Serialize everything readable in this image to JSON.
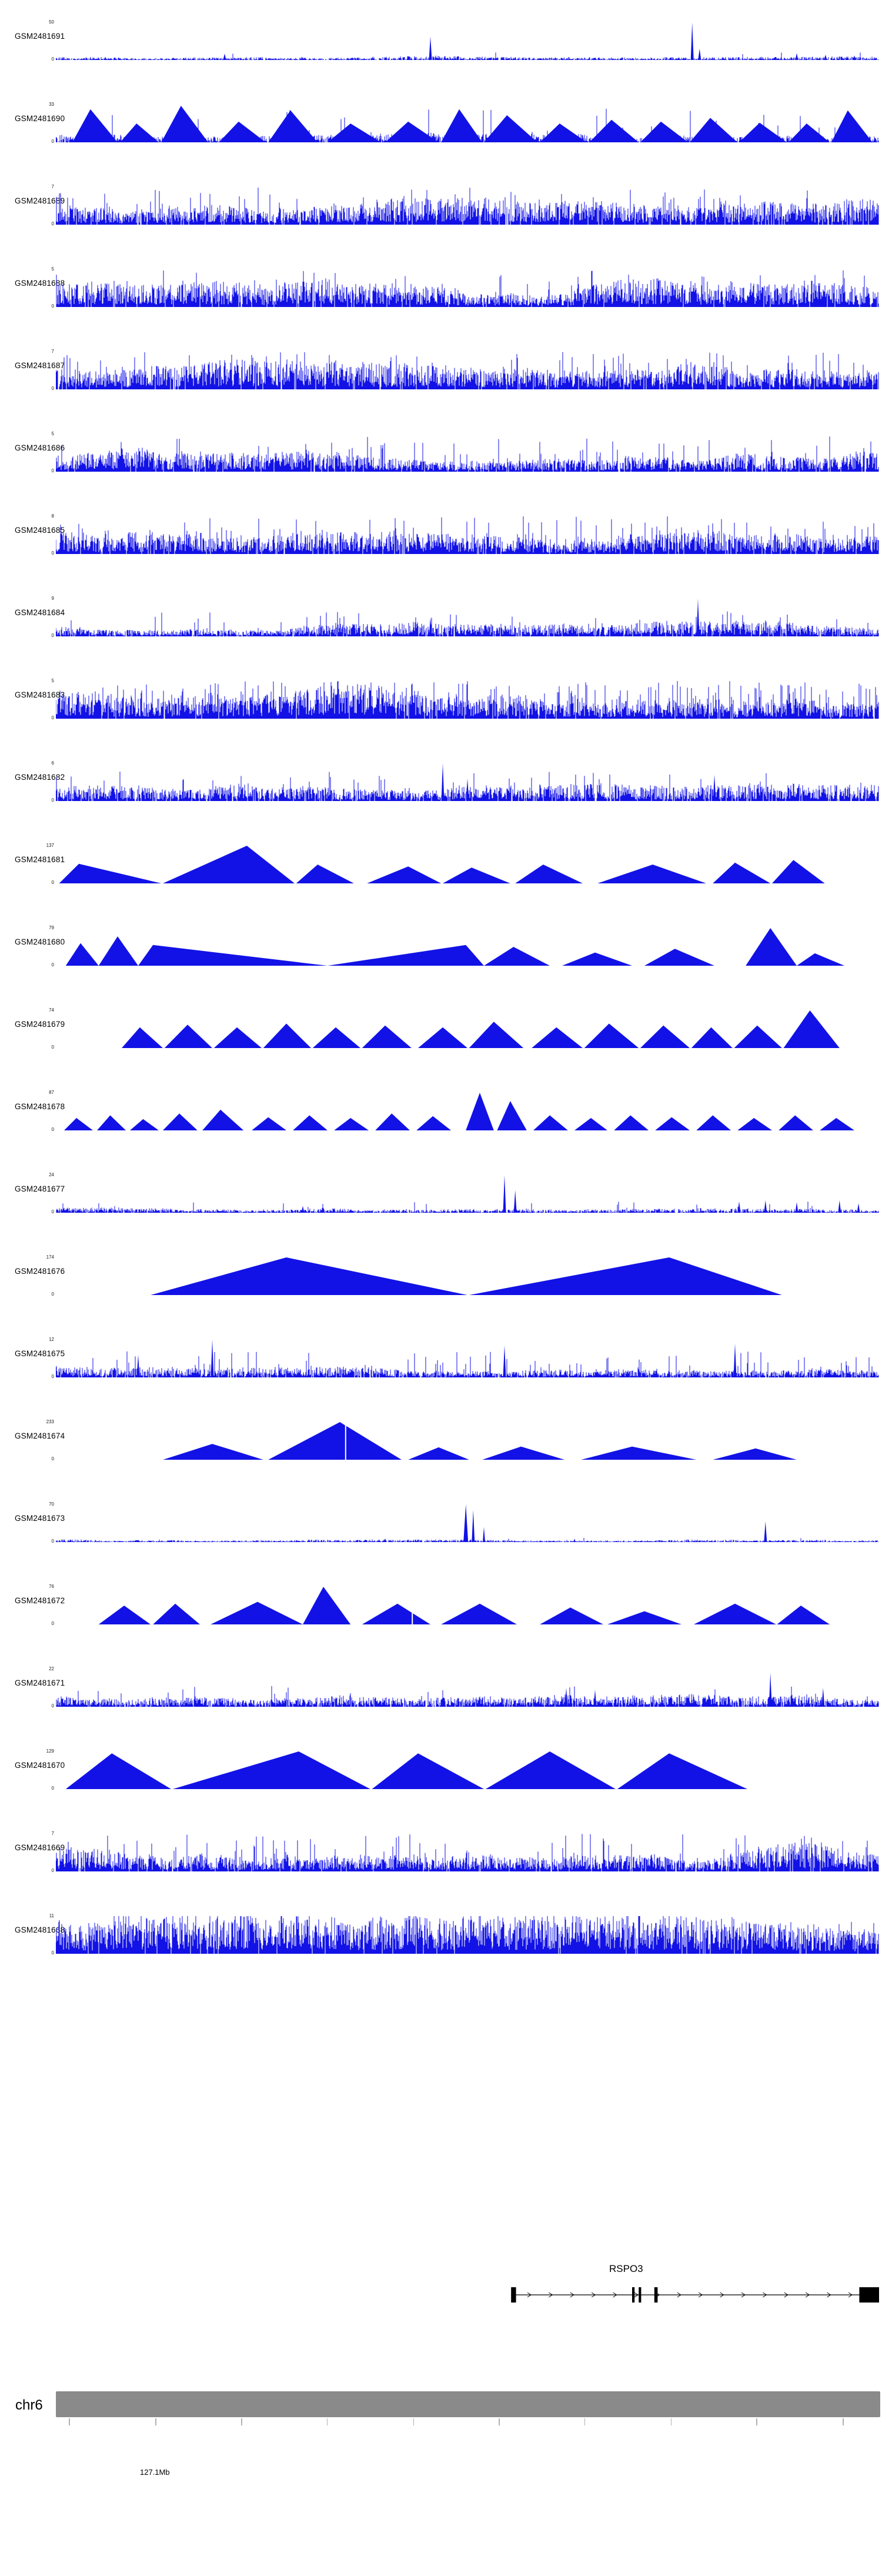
{
  "figure": {
    "background": "#ffffff",
    "signal_color": "#1212e6",
    "annotation_color": "#000000",
    "chrom_bar_color": "#8a8a8a"
  },
  "chromosome": {
    "name": "chr6",
    "position_label": "127.1Mb",
    "label_tick_index": 1,
    "ticks": [
      0.016,
      0.121,
      0.225,
      0.329,
      0.434,
      0.538,
      0.642,
      0.747,
      0.851,
      0.956
    ]
  },
  "gene": {
    "name": "RSPO3",
    "strand": "+",
    "line_start": 0.553,
    "line_end": 1.0,
    "exons": [
      {
        "x": 0.553,
        "w": 0.006
      },
      {
        "x": 0.7,
        "w": 0.003
      },
      {
        "x": 0.708,
        "w": 0.003
      },
      {
        "x": 0.727,
        "w": 0.004
      }
    ],
    "end_box": {
      "x": 0.976,
      "w": 0.024
    },
    "chevron_start": 0.575,
    "chevron_end": 0.968,
    "chevron_step": 0.026
  },
  "chart_data": {
    "type": "area",
    "description": "Genome browser coverage tracks, chr6 around 127.1Mb at RSPO3 locus",
    "x_axis": {
      "chromosome": "chr6",
      "visible_position_label": "127.1Mb"
    },
    "tracks": [
      {
        "label": "GSM2481691",
        "ymax": 50,
        "ymin": 0,
        "type": "dense",
        "seed": 101,
        "base": 0.05,
        "density": 0.85,
        "spikeProb": 0.008,
        "spikeMax": 0.2,
        "spikes": [
          [
            0.205,
            0.17
          ],
          [
            0.455,
            0.62
          ],
          [
            0.773,
            1.0
          ],
          [
            0.782,
            0.3
          ],
          [
            0.9,
            0.18
          ],
          [
            0.935,
            0.14
          ],
          [
            0.97,
            0.12
          ]
        ]
      },
      {
        "label": "GSM2481690",
        "ymax": 33,
        "ymin": 0,
        "type": "peaks",
        "seed": 102,
        "noise": {
          "base": 0.1,
          "density": 0.8,
          "spikeProb": 0.05,
          "spikeMax": 0.9
        },
        "triangles": [
          [
            0.02,
            0.042,
            0.075,
            0.88
          ],
          [
            0.078,
            0.098,
            0.125,
            0.5
          ],
          [
            0.128,
            0.152,
            0.185,
            0.97
          ],
          [
            0.198,
            0.222,
            0.255,
            0.55
          ],
          [
            0.258,
            0.285,
            0.318,
            0.85
          ],
          [
            0.33,
            0.358,
            0.395,
            0.5
          ],
          [
            0.4,
            0.428,
            0.465,
            0.55
          ],
          [
            0.468,
            0.49,
            0.518,
            0.88
          ],
          [
            0.52,
            0.548,
            0.585,
            0.72
          ],
          [
            0.588,
            0.612,
            0.645,
            0.5
          ],
          [
            0.648,
            0.675,
            0.708,
            0.6
          ],
          [
            0.71,
            0.735,
            0.768,
            0.55
          ],
          [
            0.77,
            0.795,
            0.828,
            0.65
          ],
          [
            0.83,
            0.855,
            0.888,
            0.52
          ],
          [
            0.89,
            0.912,
            0.94,
            0.5
          ],
          [
            0.942,
            0.962,
            0.992,
            0.85
          ]
        ]
      },
      {
        "label": "GSM2481689",
        "ymax": 7,
        "ymin": 0,
        "type": "dense",
        "seed": 103,
        "base": 0.28,
        "density": 0.95,
        "spikeProb": 0.1,
        "spikeMax": 1.0,
        "spikes": []
      },
      {
        "label": "GSM2481688",
        "ymax": 5,
        "ymin": 0,
        "type": "dense",
        "seed": 104,
        "base": 0.3,
        "density": 0.95,
        "spikeProb": 0.09,
        "spikeMax": 1.0,
        "spikes": []
      },
      {
        "label": "GSM2481687",
        "ymax": 7,
        "ymin": 0,
        "type": "dense",
        "seed": 105,
        "base": 0.3,
        "density": 0.95,
        "spikeProb": 0.12,
        "spikeMax": 1.0,
        "spikes": []
      },
      {
        "label": "GSM2481686",
        "ymax": 5,
        "ymin": 0,
        "type": "dense",
        "seed": 106,
        "base": 0.26,
        "density": 0.95,
        "spikeProb": 0.08,
        "spikeMax": 0.95,
        "spikes": []
      },
      {
        "label": "GSM2481685",
        "ymax": 8,
        "ymin": 0,
        "type": "dense",
        "seed": 107,
        "base": 0.28,
        "density": 0.95,
        "spikeProb": 0.1,
        "spikeMax": 1.0,
        "spikes": []
      },
      {
        "label": "GSM2481684",
        "ymax": 9,
        "ymin": 0,
        "type": "dense",
        "seed": 108,
        "base": 0.16,
        "density": 0.93,
        "spikeProb": 0.05,
        "spikeMax": 0.7,
        "spikes": [
          [
            0.78,
            1.0
          ],
          [
            0.455,
            0.5
          ]
        ]
      },
      {
        "label": "GSM2481683",
        "ymax": 5,
        "ymin": 0,
        "type": "dense",
        "seed": 109,
        "base": 0.38,
        "density": 0.97,
        "spikeProb": 0.18,
        "spikeMax": 1.0,
        "spikes": []
      },
      {
        "label": "GSM2481682",
        "ymax": 6,
        "ymin": 0,
        "type": "dense",
        "seed": 110,
        "base": 0.18,
        "density": 0.93,
        "spikeProb": 0.06,
        "spikeMax": 0.8,
        "spikes": [
          [
            0.47,
            1.0
          ],
          [
            0.5,
            0.6
          ],
          [
            0.8,
            0.7
          ]
        ]
      },
      {
        "label": "GSM2481681",
        "ymax": 137,
        "ymin": 0,
        "type": "peaks",
        "seed": 111,
        "triangles": [
          [
            0.004,
            0.028,
            0.128,
            0.52
          ],
          [
            0.13,
            0.232,
            0.29,
            1.0
          ],
          [
            0.292,
            0.318,
            0.362,
            0.5
          ],
          [
            0.378,
            0.428,
            0.468,
            0.45
          ],
          [
            0.47,
            0.505,
            0.552,
            0.42
          ],
          [
            0.558,
            0.592,
            0.64,
            0.5
          ],
          [
            0.658,
            0.725,
            0.79,
            0.5
          ],
          [
            0.798,
            0.825,
            0.868,
            0.55
          ],
          [
            0.87,
            0.896,
            0.934,
            0.62
          ]
        ]
      },
      {
        "label": "GSM2481680",
        "ymax": 79,
        "ymin": 0,
        "type": "peaks",
        "seed": 112,
        "triangles": [
          [
            0.012,
            0.03,
            0.052,
            0.6
          ],
          [
            0.052,
            0.075,
            0.1,
            0.78
          ],
          [
            0.1,
            0.118,
            0.33,
            0.55
          ],
          [
            0.33,
            0.498,
            0.52,
            0.55
          ],
          [
            0.52,
            0.556,
            0.6,
            0.5
          ],
          [
            0.615,
            0.655,
            0.7,
            0.35
          ],
          [
            0.715,
            0.752,
            0.8,
            0.45
          ],
          [
            0.838,
            0.868,
            0.9,
            1.0
          ],
          [
            0.9,
            0.922,
            0.958,
            0.33
          ]
        ]
      },
      {
        "label": "GSM2481679",
        "ymax": 74,
        "ymin": 0,
        "type": "peaks",
        "seed": 113,
        "triangles": [
          [
            0.08,
            0.102,
            0.13,
            0.55
          ],
          [
            0.132,
            0.16,
            0.19,
            0.62
          ],
          [
            0.192,
            0.22,
            0.25,
            0.55
          ],
          [
            0.252,
            0.28,
            0.31,
            0.65
          ],
          [
            0.312,
            0.34,
            0.37,
            0.55
          ],
          [
            0.372,
            0.4,
            0.432,
            0.6
          ],
          [
            0.44,
            0.47,
            0.5,
            0.55
          ],
          [
            0.502,
            0.532,
            0.568,
            0.7
          ],
          [
            0.578,
            0.608,
            0.64,
            0.55
          ],
          [
            0.642,
            0.672,
            0.708,
            0.65
          ],
          [
            0.71,
            0.738,
            0.77,
            0.6
          ],
          [
            0.772,
            0.796,
            0.822,
            0.55
          ],
          [
            0.824,
            0.852,
            0.882,
            0.6
          ],
          [
            0.884,
            0.916,
            0.952,
            1.0
          ]
        ]
      },
      {
        "label": "GSM2481678",
        "ymax": 87,
        "ymin": 0,
        "type": "peaks",
        "seed": 114,
        "triangles": [
          [
            0.01,
            0.025,
            0.045,
            0.33
          ],
          [
            0.05,
            0.066,
            0.085,
            0.4
          ],
          [
            0.09,
            0.106,
            0.125,
            0.3
          ],
          [
            0.13,
            0.15,
            0.172,
            0.45
          ],
          [
            0.178,
            0.2,
            0.228,
            0.55
          ],
          [
            0.238,
            0.258,
            0.28,
            0.35
          ],
          [
            0.288,
            0.308,
            0.33,
            0.4
          ],
          [
            0.338,
            0.358,
            0.38,
            0.33
          ],
          [
            0.388,
            0.408,
            0.43,
            0.45
          ],
          [
            0.438,
            0.458,
            0.48,
            0.38
          ],
          [
            0.498,
            0.515,
            0.532,
            1.0
          ],
          [
            0.536,
            0.552,
            0.572,
            0.78
          ],
          [
            0.58,
            0.6,
            0.622,
            0.4
          ],
          [
            0.63,
            0.65,
            0.67,
            0.33
          ],
          [
            0.678,
            0.698,
            0.72,
            0.4
          ],
          [
            0.728,
            0.748,
            0.77,
            0.35
          ],
          [
            0.778,
            0.798,
            0.82,
            0.4
          ],
          [
            0.828,
            0.848,
            0.87,
            0.33
          ],
          [
            0.878,
            0.898,
            0.92,
            0.4
          ],
          [
            0.928,
            0.948,
            0.97,
            0.33
          ]
        ]
      },
      {
        "label": "GSM2481677",
        "ymax": 24,
        "ymin": 0,
        "type": "dense",
        "seed": 115,
        "base": 0.07,
        "density": 0.9,
        "spikeProb": 0.03,
        "spikeMax": 0.3,
        "spikes": [
          [
            0.545,
            1.0
          ],
          [
            0.558,
            0.6
          ],
          [
            0.3,
            0.18
          ],
          [
            0.83,
            0.3
          ],
          [
            0.862,
            0.33
          ],
          [
            0.9,
            0.28
          ],
          [
            0.952,
            0.33
          ],
          [
            0.975,
            0.25
          ]
        ]
      },
      {
        "label": "GSM2481676",
        "ymax": 174,
        "ymin": 0,
        "type": "peaks",
        "seed": 116,
        "triangles": [
          [
            0.115,
            0.28,
            0.5,
            1.0
          ],
          [
            0.502,
            0.745,
            0.882,
            1.0
          ]
        ]
      },
      {
        "label": "GSM2481675",
        "ymax": 12,
        "ymin": 0,
        "type": "dense",
        "seed": 117,
        "base": 0.16,
        "density": 0.92,
        "spikeProb": 0.07,
        "spikeMax": 0.7,
        "spikes": [
          [
            0.19,
            1.0
          ],
          [
            0.545,
            0.85
          ],
          [
            0.825,
            0.9
          ],
          [
            0.1,
            0.6
          ]
        ]
      },
      {
        "label": "GSM2481674",
        "ymax": 233,
        "ymin": 0,
        "type": "peaks",
        "seed": 118,
        "slits": [
          0.352
        ],
        "triangles": [
          [
            0.13,
            0.19,
            0.252,
            0.42
          ],
          [
            0.258,
            0.345,
            0.42,
            1.0
          ],
          [
            0.428,
            0.465,
            0.502,
            0.33
          ],
          [
            0.518,
            0.565,
            0.618,
            0.35
          ],
          [
            0.638,
            0.7,
            0.778,
            0.35
          ],
          [
            0.798,
            0.85,
            0.9,
            0.3
          ]
        ]
      },
      {
        "label": "GSM2481673",
        "ymax": 70,
        "ymin": 0,
        "type": "dense",
        "seed": 119,
        "base": 0.035,
        "density": 0.9,
        "spikeProb": 0.004,
        "spikeMax": 0.12,
        "spikes": [
          [
            0.498,
            1.0,
            8
          ],
          [
            0.507,
            0.85,
            5
          ],
          [
            0.52,
            0.4,
            4
          ],
          [
            0.862,
            0.55,
            5
          ],
          [
            0.4,
            0.1,
            4
          ],
          [
            0.63,
            0.09,
            4
          ]
        ]
      },
      {
        "label": "GSM2481672",
        "ymax": 76,
        "ymin": 0,
        "type": "peaks",
        "seed": 120,
        "slits": [
          0.433
        ],
        "triangles": [
          [
            0.052,
            0.083,
            0.115,
            0.5
          ],
          [
            0.118,
            0.145,
            0.175,
            0.55
          ],
          [
            0.188,
            0.245,
            0.3,
            0.6
          ],
          [
            0.3,
            0.325,
            0.358,
            1.0
          ],
          [
            0.372,
            0.415,
            0.455,
            0.55
          ],
          [
            0.468,
            0.515,
            0.56,
            0.55
          ],
          [
            0.588,
            0.625,
            0.665,
            0.45
          ],
          [
            0.67,
            0.715,
            0.76,
            0.35
          ],
          [
            0.775,
            0.825,
            0.875,
            0.55
          ],
          [
            0.876,
            0.905,
            0.94,
            0.5
          ]
        ]
      },
      {
        "label": "GSM2481671",
        "ymax": 22,
        "ymin": 0,
        "type": "dense",
        "seed": 121,
        "base": 0.13,
        "density": 0.92,
        "spikeProb": 0.05,
        "spikeMax": 0.55,
        "spikes": [
          [
            0.868,
            0.9
          ],
          [
            0.932,
            0.5
          ],
          [
            0.62,
            0.5
          ],
          [
            0.655,
            0.45
          ]
        ]
      },
      {
        "label": "GSM2481670",
        "ymax": 129,
        "ymin": 0,
        "type": "peaks",
        "seed": 122,
        "triangles": [
          [
            0.012,
            0.068,
            0.14,
            0.95
          ],
          [
            0.142,
            0.295,
            0.382,
            1.0
          ],
          [
            0.384,
            0.44,
            0.52,
            0.95
          ],
          [
            0.522,
            0.6,
            0.68,
            1.0
          ],
          [
            0.682,
            0.745,
            0.84,
            0.95
          ]
        ]
      },
      {
        "label": "GSM2481669",
        "ymax": 7,
        "ymin": 0,
        "type": "dense",
        "seed": 123,
        "base": 0.3,
        "density": 0.95,
        "spikeProb": 0.1,
        "spikeMax": 1.0,
        "spikes": []
      },
      {
        "label": "GSM2481668",
        "ymax": 11,
        "ymin": 0,
        "type": "dense",
        "seed": 124,
        "base": 0.42,
        "density": 0.97,
        "spikeProb": 0.12,
        "spikeMax": 1.0,
        "spikes": []
      }
    ]
  }
}
